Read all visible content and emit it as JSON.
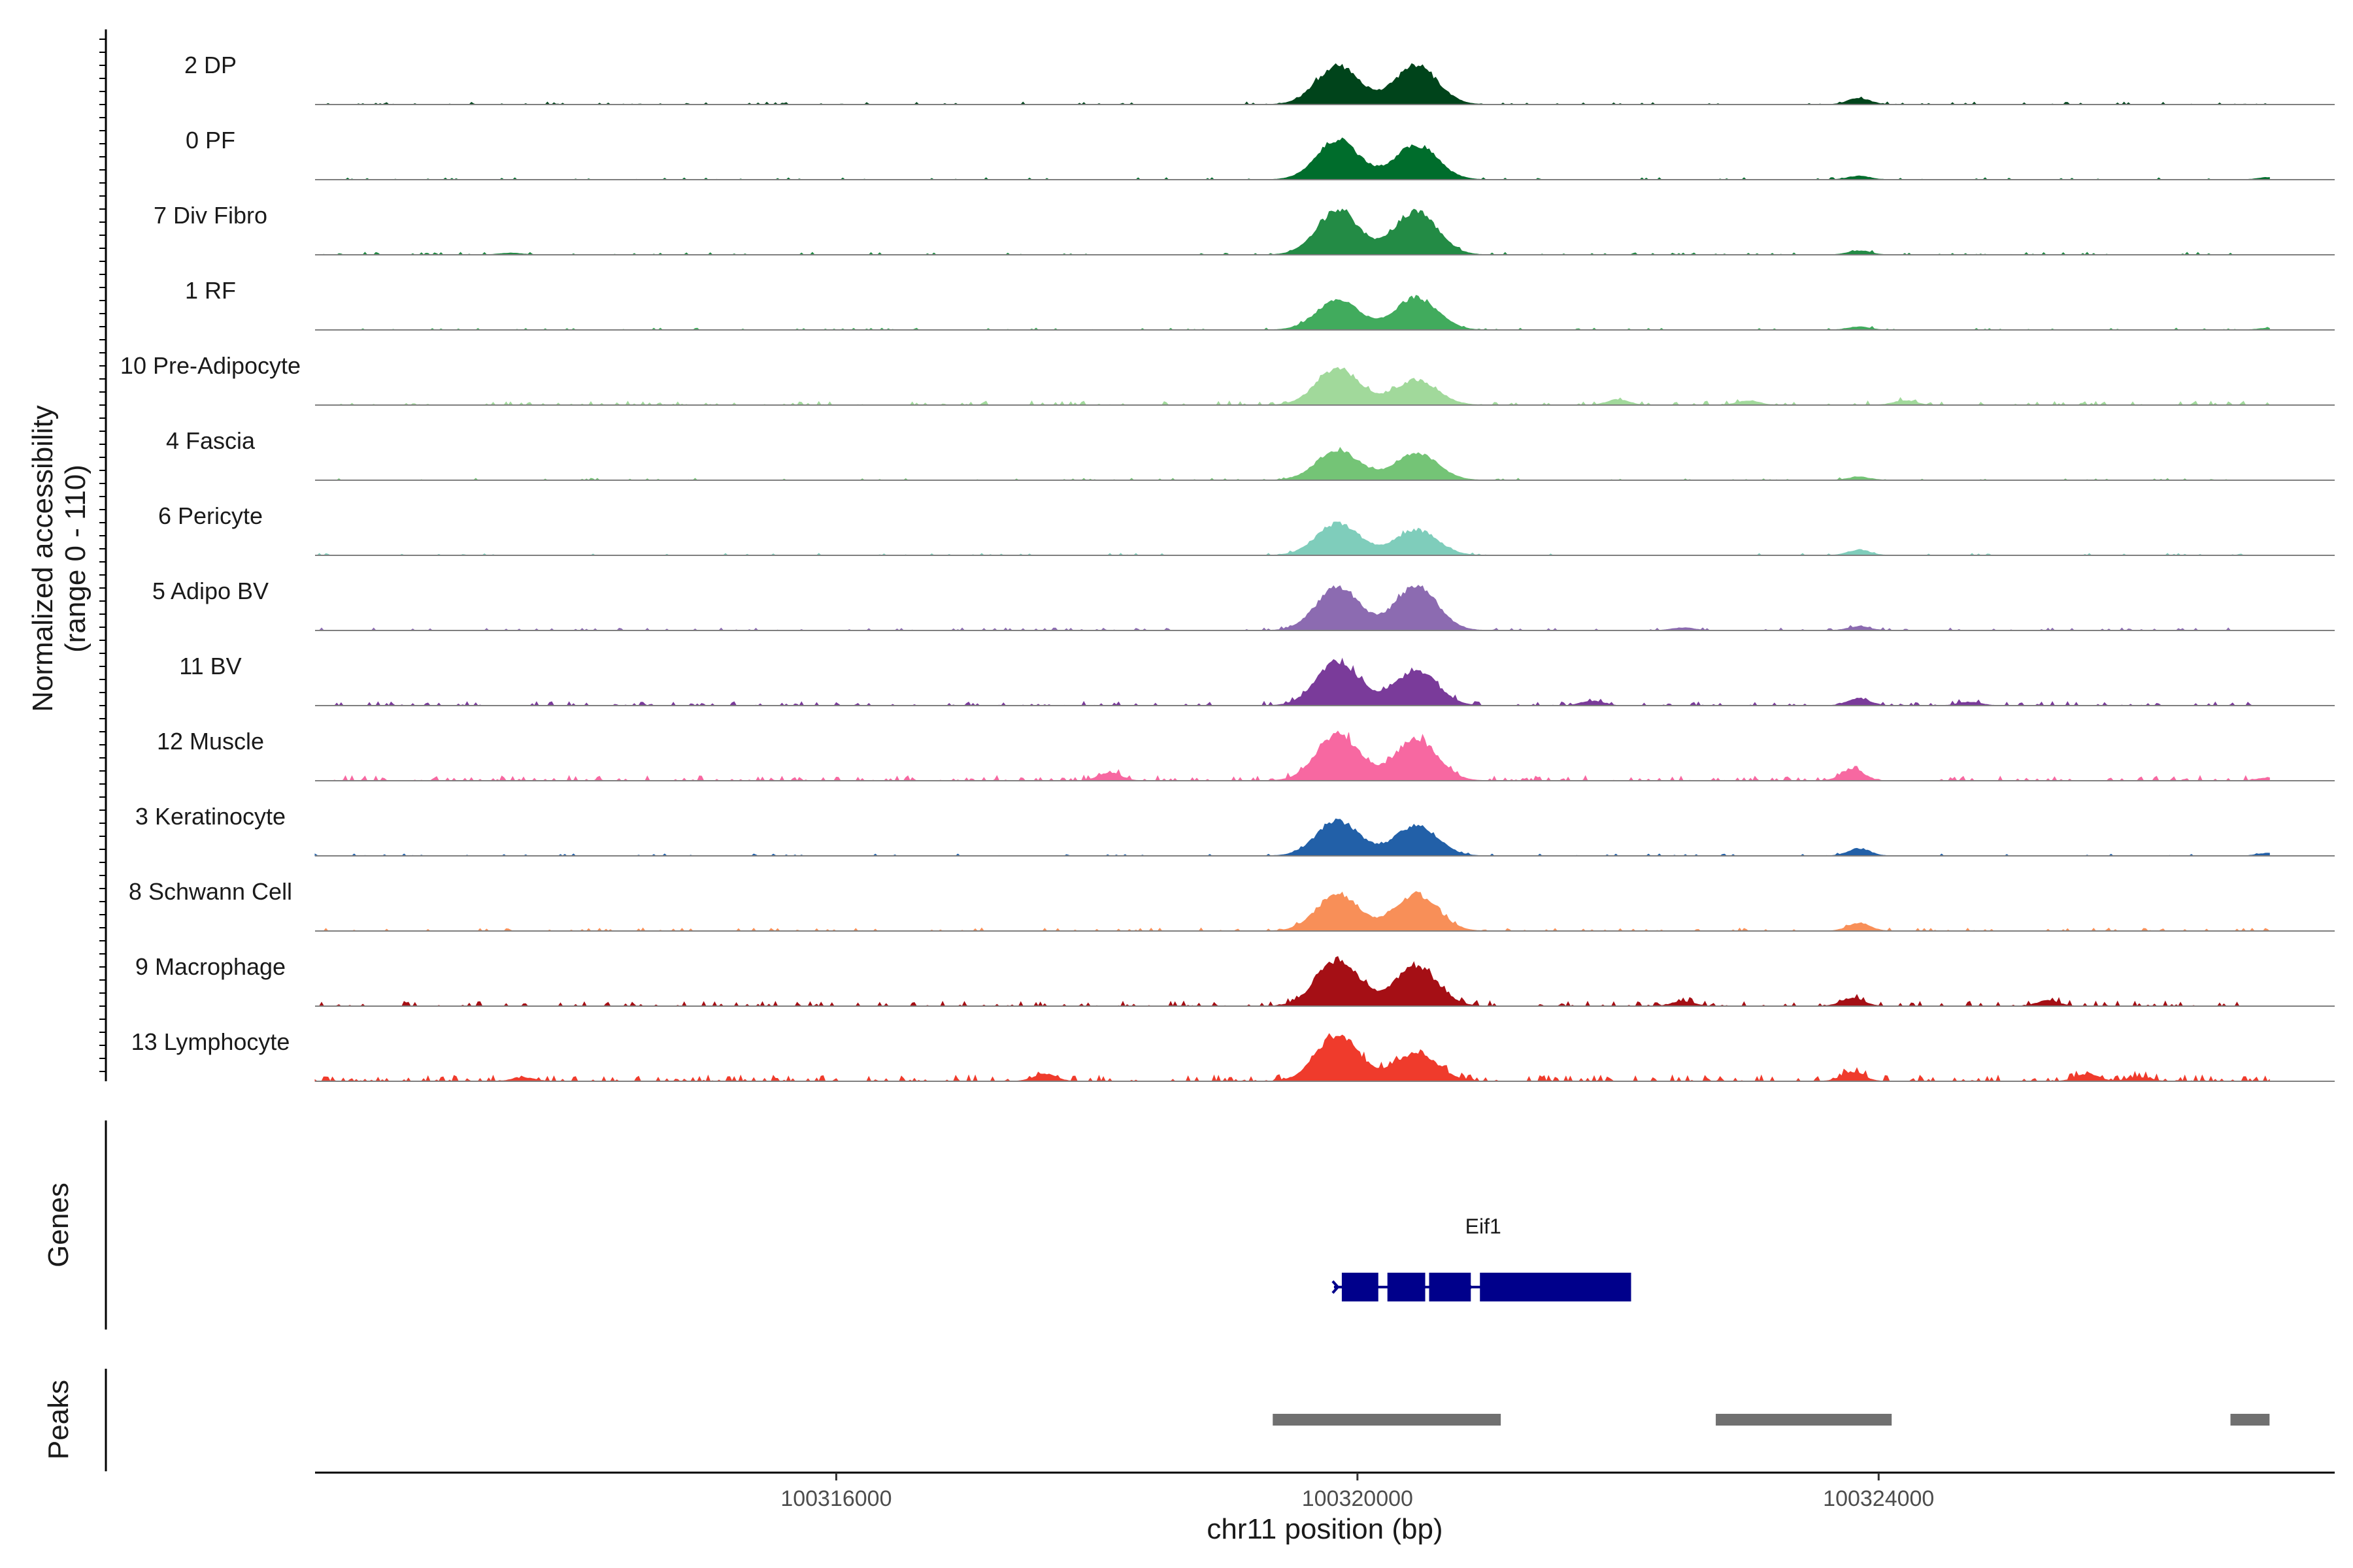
{
  "chart_data": {
    "type": "area",
    "region": {
      "chromosome": "chr11",
      "start": 100312000,
      "end": 100327500
    },
    "y_axis": {
      "label": "Normalized accessibility",
      "range_label": "(range 0 - 110)",
      "ylim": [
        0,
        110
      ]
    },
    "x_axis": {
      "label": "chr11 position (bp)",
      "ticks": [
        100316000,
        100320000,
        100324000
      ],
      "tick_labels": [
        "100316000",
        "100320000",
        "100324000"
      ]
    },
    "tracks": [
      {
        "name": "2 DP",
        "color": "#00441b",
        "peak1": 0.85,
        "peak2": 0.85,
        "bg": 0.05,
        "extras": [
          [
            100323850,
            0.14
          ]
        ]
      },
      {
        "name": "0 PF",
        "color": "#006d2c",
        "peak1": 0.85,
        "peak2": 0.75,
        "bg": 0.04,
        "extras": [
          [
            100323850,
            0.08
          ],
          [
            100327000,
            0.05
          ]
        ]
      },
      {
        "name": "7 Div Fibro",
        "color": "#238b45",
        "peak1": 0.95,
        "peak2": 0.95,
        "bg": 0.05,
        "extras": [
          [
            100323850,
            0.09
          ],
          [
            100313500,
            0.04
          ]
        ]
      },
      {
        "name": "1 RF",
        "color": "#41ab5d",
        "peak1": 0.65,
        "peak2": 0.7,
        "bg": 0.04,
        "extras": [
          [
            100323850,
            0.07
          ],
          [
            100327000,
            0.04
          ]
        ]
      },
      {
        "name": "10 Pre-Adipocyte",
        "color": "#a1d99b",
        "peak1": 0.8,
        "peak2": 0.55,
        "bg": 0.08,
        "extras": [
          [
            100322000,
            0.12
          ],
          [
            100323000,
            0.1
          ],
          [
            100324200,
            0.1
          ]
        ]
      },
      {
        "name": "4 Fascia",
        "color": "#74c476",
        "peak1": 0.65,
        "peak2": 0.6,
        "bg": 0.04,
        "extras": [
          [
            100323850,
            0.07
          ]
        ]
      },
      {
        "name": "6 Pericyte",
        "color": "#7fcdbb",
        "peak1": 0.7,
        "peak2": 0.55,
        "bg": 0.04,
        "extras": [
          [
            100323850,
            0.12
          ]
        ]
      },
      {
        "name": "5 Adipo BV",
        "color": "#8c6bb1",
        "peak1": 0.95,
        "peak2": 0.95,
        "bg": 0.05,
        "extras": [
          [
            100323850,
            0.09
          ],
          [
            100322500,
            0.06
          ]
        ]
      },
      {
        "name": "11 BV",
        "color": "#7a3b9a",
        "peak1": 0.95,
        "peak2": 0.75,
        "bg": 0.08,
        "extras": [
          [
            100323850,
            0.16
          ],
          [
            100321800,
            0.1
          ],
          [
            100324700,
            0.08
          ]
        ]
      },
      {
        "name": "12 Muscle",
        "color": "#f768a1",
        "peak1": 1.0,
        "peak2": 0.9,
        "bg": 0.1,
        "extras": [
          [
            100323800,
            0.26
          ],
          [
            100318100,
            0.18
          ],
          [
            100327000,
            0.07
          ]
        ]
      },
      {
        "name": "3 Keratinocyte",
        "color": "#2260a8",
        "peak1": 0.75,
        "peak2": 0.65,
        "bg": 0.04,
        "extras": [
          [
            100323850,
            0.16
          ],
          [
            100327000,
            0.06
          ]
        ]
      },
      {
        "name": "8 Schwann Cell",
        "color": "#f88f58",
        "peak1": 0.8,
        "peak2": 0.8,
        "bg": 0.06,
        "extras": [
          [
            100323850,
            0.18
          ]
        ]
      },
      {
        "name": "9 Macrophage",
        "color": "#a50f15",
        "peak1": 1.0,
        "peak2": 0.85,
        "bg": 0.1,
        "extras": [
          [
            100323800,
            0.18
          ],
          [
            100325300,
            0.12
          ],
          [
            100322500,
            0.1
          ]
        ]
      },
      {
        "name": "13 Lymphocyte",
        "color": "#ef3b2c",
        "peak1": 1.0,
        "peak2": 0.6,
        "bg": 0.12,
        "extras": [
          [
            100317600,
            0.16
          ],
          [
            100313600,
            0.08
          ],
          [
            100323800,
            0.2
          ],
          [
            100325600,
            0.16
          ],
          [
            100326000,
            0.09
          ]
        ]
      }
    ],
    "genes": [
      {
        "name": "Eif1",
        "strand": "+",
        "color": "#00008b",
        "start": 100319880,
        "end": 100322100,
        "exons": [
          [
            100319880,
            100320160
          ],
          [
            100320230,
            100320520
          ],
          [
            100320550,
            100320870
          ],
          [
            100320940,
            100322100
          ]
        ]
      }
    ],
    "peaks": [
      [
        100319350,
        100321100
      ],
      [
        100322750,
        100324100
      ],
      [
        100326700,
        100327000
      ]
    ],
    "peak_color": "#707070",
    "panel_titles": {
      "genes": "Genes",
      "peaks": "Peaks"
    }
  }
}
